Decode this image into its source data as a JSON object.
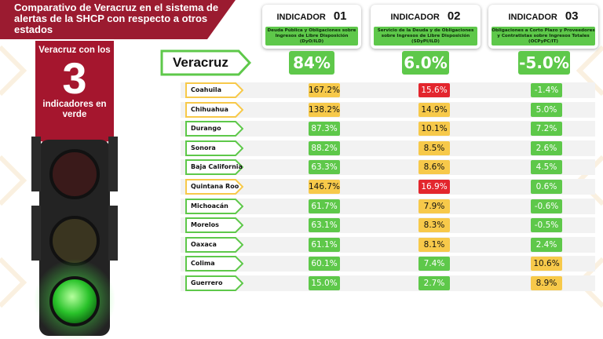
{
  "title": "Comparativo de Veracruz en el sistema de alertas de la SHCP con respecto a otros estados",
  "badge": {
    "line1": "Veracruz con los",
    "number": "3",
    "line2": "indicadores en verde"
  },
  "indicators": [
    {
      "label": "INDICADOR",
      "num": "01",
      "desc": "Deuda Pública y Obligaciones sobre Ingresos de Libre Disposición (DyO/ILD)"
    },
    {
      "label": "INDICADOR",
      "num": "02",
      "desc": "Servicio de la Deuda y de Obligaciones sobre Ingresos de Libre Disposición (SDyPI/ILD)"
    },
    {
      "label": "INDICADOR",
      "num": "03",
      "desc": "Obligaciones a Corto Plazo y Proveedores y Contratistas sobre Ingresos Totales (OCPyPC/IT)"
    }
  ],
  "veracruz": {
    "name": "Veracruz",
    "values": [
      "84%",
      "6.0%",
      "-5.0%"
    ]
  },
  "colors": {
    "green": "#5ec84a",
    "yellow": "#f7c94a",
    "red": "#e3262d",
    "brand": "#9b1b30"
  },
  "states": [
    {
      "name": "Coahuila",
      "tag": "yellow",
      "values": [
        "167.2%",
        "15.6%",
        "-1.4%"
      ],
      "status": [
        "yellow",
        "red",
        "green"
      ]
    },
    {
      "name": "Chihuahua",
      "tag": "yellow",
      "values": [
        "138.2%",
        "14.9%",
        "5.0%"
      ],
      "status": [
        "yellow",
        "yellow",
        "green"
      ]
    },
    {
      "name": "Durango",
      "tag": "green",
      "values": [
        "87.3%",
        "10.1%",
        "7.2%"
      ],
      "status": [
        "green",
        "yellow",
        "green"
      ]
    },
    {
      "name": "Sonora",
      "tag": "green",
      "values": [
        "88.2%",
        "8.5%",
        "2.6%"
      ],
      "status": [
        "green",
        "yellow",
        "green"
      ]
    },
    {
      "name": "Baja California",
      "tag": "green",
      "values": [
        "63.3%",
        "8.6%",
        "4.5%"
      ],
      "status": [
        "green",
        "yellow",
        "green"
      ]
    },
    {
      "name": "Quintana Roo",
      "tag": "yellow",
      "values": [
        "146.7%",
        "16.9%",
        "0.6%"
      ],
      "status": [
        "yellow",
        "red",
        "green"
      ]
    },
    {
      "name": "Michoacán",
      "tag": "green",
      "values": [
        "61.7%",
        "7.9%",
        "-0.6%"
      ],
      "status": [
        "green",
        "yellow",
        "green"
      ]
    },
    {
      "name": "Morelos",
      "tag": "green",
      "values": [
        "63.1%",
        "8.3%",
        "-0.5%"
      ],
      "status": [
        "green",
        "yellow",
        "green"
      ]
    },
    {
      "name": "Oaxaca",
      "tag": "green",
      "values": [
        "61.1%",
        "8.1%",
        "2.4%"
      ],
      "status": [
        "green",
        "yellow",
        "green"
      ]
    },
    {
      "name": "Colima",
      "tag": "green",
      "values": [
        "60.1%",
        "7.4%",
        "10.6%"
      ],
      "status": [
        "green",
        "green",
        "yellow"
      ]
    },
    {
      "name": "Guerrero",
      "tag": "green",
      "values": [
        "15.0%",
        "2.7%",
        "8.9%"
      ],
      "status": [
        "green",
        "green",
        "yellow"
      ]
    }
  ]
}
